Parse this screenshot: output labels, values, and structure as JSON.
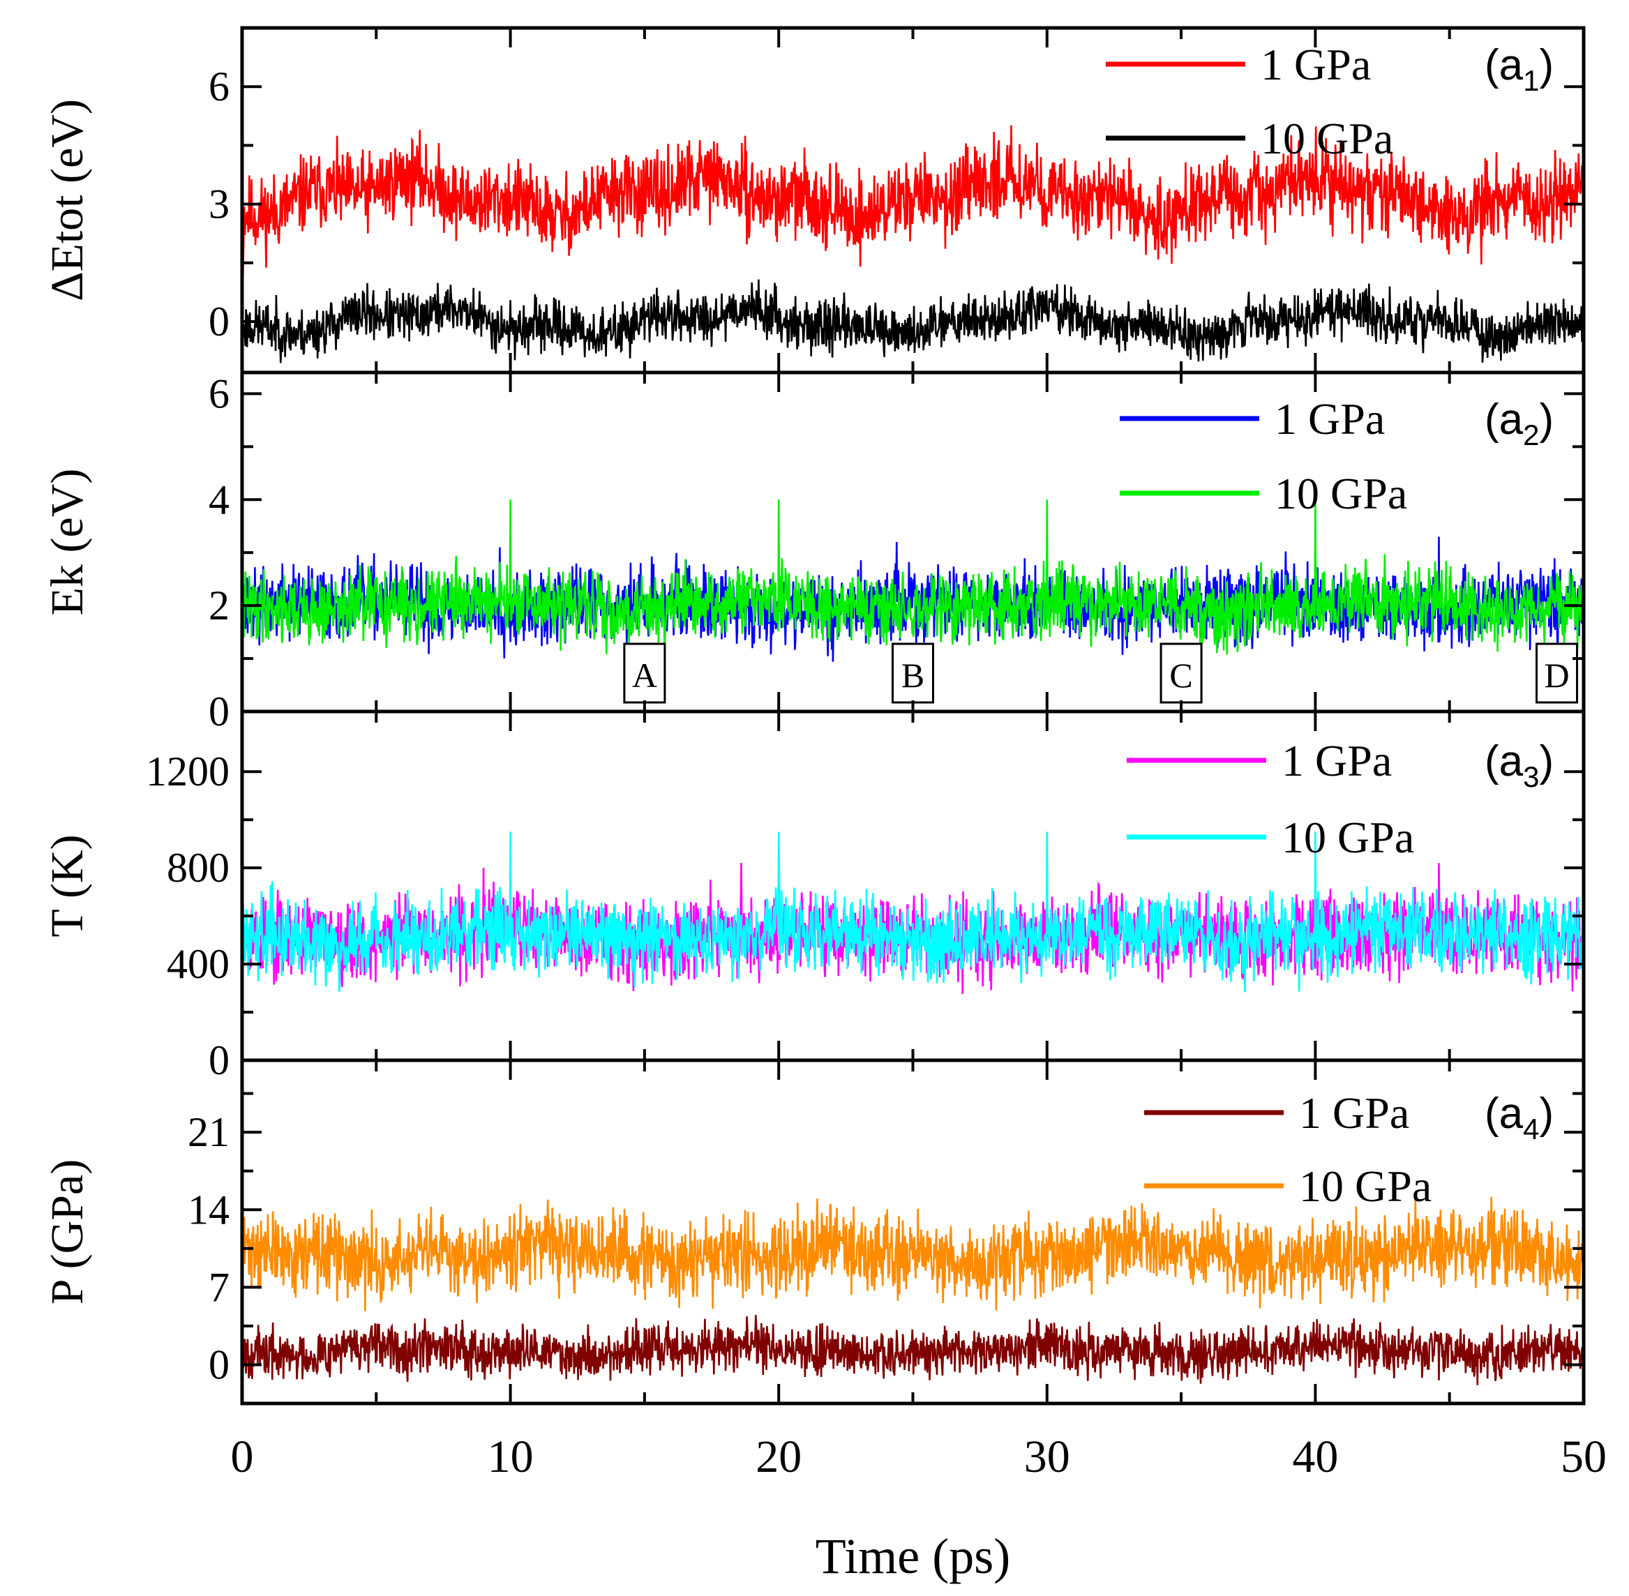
{
  "chart_data": {
    "type": "line",
    "shared_x": {
      "label": "Time (ps)",
      "range": [
        0,
        50
      ],
      "ticks": [
        0,
        10,
        20,
        30,
        40,
        50
      ],
      "minor_step": 5
    },
    "panels": [
      {
        "id": "a1",
        "tag_main": "(a",
        "tag_sub": "1",
        "tag_close": ")",
        "ylabel": "ΔEtot (eV)",
        "ylim": [
          -1.3,
          7.5
        ],
        "yticks": [
          0,
          3,
          6
        ],
        "yminor": [
          1.5,
          4.5
        ],
        "series": [
          {
            "name": "1 GPa",
            "color": "#ff0000",
            "mean": 3.2,
            "amp": 0.85,
            "drift": 0.35,
            "seed": 11,
            "start": [
              0.3,
              6.5,
              0.3
            ],
            "spikes": []
          },
          {
            "name": "10 GPa",
            "color": "#000000",
            "mean": 0.0,
            "amp": 0.55,
            "drift": 0.25,
            "seed": 23,
            "start": [],
            "spikes": []
          }
        ]
      },
      {
        "id": "a2",
        "tag_main": "(a",
        "tag_sub": "2",
        "tag_close": ")",
        "ylabel": "Ek (eV)",
        "ylim": [
          0,
          6.4
        ],
        "yticks": [
          0,
          2,
          4,
          6
        ],
        "yminor": [
          1,
          3,
          5
        ],
        "series": [
          {
            "name": "1 GPa",
            "color": "#0000ff",
            "mean": 2.0,
            "amp": 0.6,
            "drift": 0.08,
            "seed": 37,
            "start": [],
            "spikes": [
              [
                9.6,
                3.1
              ],
              [
                24.4,
                3.2
              ],
              [
                44.6,
                3.3
              ]
            ]
          },
          {
            "name": "10 GPa",
            "color": "#00ee00",
            "mean": 2.0,
            "amp": 0.55,
            "drift": 0.08,
            "seed": 41,
            "start": [
              4.0
            ],
            "spikes": [
              [
                10,
                4.0
              ],
              [
                20,
                4.0
              ],
              [
                30,
                4.0
              ],
              [
                40,
                4.0
              ]
            ]
          }
        ],
        "markers": [
          {
            "x": 15.0,
            "label": "A"
          },
          {
            "x": 25.0,
            "label": "B"
          },
          {
            "x": 35.0,
            "label": "C"
          },
          {
            "x": 49.0,
            "label": "D"
          }
        ]
      },
      {
        "id": "a3",
        "tag_main": "(a",
        "tag_sub": "3",
        "tag_close": ")",
        "ylabel": "T (K)",
        "ylim": [
          0,
          1450
        ],
        "yticks": [
          0,
          400,
          800,
          1200
        ],
        "yminor": [
          200,
          600,
          1000
        ],
        "series": [
          {
            "name": "1 GPa",
            "color": "#ff00ff",
            "mean": 520,
            "amp": 140,
            "drift": 20,
            "seed": 53,
            "start": [],
            "spikes": [
              [
                9.0,
                800
              ],
              [
                18.6,
                820
              ],
              [
                44.6,
                820
              ]
            ]
          },
          {
            "name": "10 GPa",
            "color": "#00ffff",
            "mean": 520,
            "amp": 135,
            "drift": 20,
            "seed": 59,
            "start": [
              950
            ],
            "spikes": [
              [
                10,
                950
              ],
              [
                20,
                950
              ],
              [
                30,
                950
              ],
              [
                40,
                950
              ]
            ]
          }
        ]
      },
      {
        "id": "a4",
        "tag_main": "(a",
        "tag_sub": "4",
        "tag_close": ")",
        "ylabel": "P (GPa)",
        "ylim": [
          -3.5,
          27.5
        ],
        "yticks": [
          0,
          7,
          14,
          21
        ],
        "yminor": [
          3.5,
          10.5,
          17.5,
          24.5
        ],
        "series": [
          {
            "name": "1 GPa",
            "color": "#800000",
            "mean": 1.3,
            "amp": 1.9,
            "drift": 0.4,
            "seed": 67,
            "start": [],
            "spikes": []
          },
          {
            "name": "10 GPa",
            "color": "#ff8c00",
            "mean": 10.0,
            "amp": 3.0,
            "drift": 0.6,
            "seed": 71,
            "start": [
              22.5,
              16.0
            ],
            "spikes": []
          }
        ]
      }
    ]
  }
}
